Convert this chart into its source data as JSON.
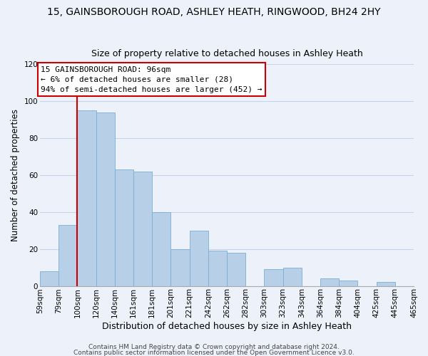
{
  "title1": "15, GAINSBOROUGH ROAD, ASHLEY HEATH, RINGWOOD, BH24 2HY",
  "title2": "Size of property relative to detached houses in Ashley Heath",
  "xlabel": "Distribution of detached houses by size in Ashley Heath",
  "ylabel": "Number of detached properties",
  "bar_labels": [
    "59sqm",
    "79sqm",
    "100sqm",
    "120sqm",
    "140sqm",
    "161sqm",
    "181sqm",
    "201sqm",
    "221sqm",
    "242sqm",
    "262sqm",
    "282sqm",
    "303sqm",
    "323sqm",
    "343sqm",
    "364sqm",
    "384sqm",
    "404sqm",
    "425sqm",
    "445sqm",
    "465sqm"
  ],
  "bar_values": [
    8,
    33,
    95,
    94,
    63,
    62,
    40,
    20,
    30,
    19,
    18,
    0,
    9,
    10,
    0,
    4,
    3,
    0,
    2,
    0
  ],
  "bar_color": "#b8cfe8",
  "bar_edge_color": "#7aaed4",
  "vline_color": "#cc0000",
  "ylim": [
    0,
    120
  ],
  "yticks": [
    0,
    20,
    40,
    60,
    80,
    100,
    120
  ],
  "annotation_title": "15 GAINSBOROUGH ROAD: 96sqm",
  "annotation_line1": "← 6% of detached houses are smaller (28)",
  "annotation_line2": "94% of semi-detached houses are larger (452) →",
  "annotation_box_color": "#ffffff",
  "annotation_box_edgecolor": "#cc0000",
  "footer1": "Contains HM Land Registry data © Crown copyright and database right 2024.",
  "footer2": "Contains public sector information licensed under the Open Government Licence v3.0.",
  "background_color": "#edf2fa",
  "plot_bg_color": "#edf2fa",
  "grid_color": "#c8d4e8",
  "title1_fontsize": 10,
  "title2_fontsize": 9,
  "xlabel_fontsize": 9,
  "ylabel_fontsize": 8.5,
  "tick_fontsize": 7.5,
  "annotation_fontsize": 8,
  "footer_fontsize": 6.5
}
